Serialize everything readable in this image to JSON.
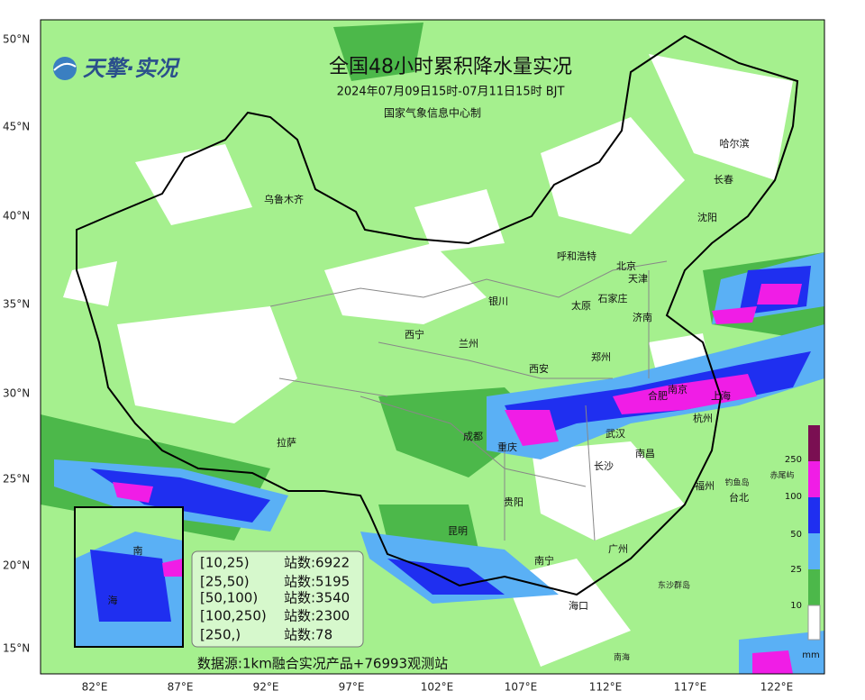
{
  "header": {
    "logo": "天擎·实况",
    "title": "全国48小时累积降水量实况",
    "subtitle": "2024年07月09日15时-07月11日15时 BJT",
    "agency": "国家气象信息中心制"
  },
  "axes": {
    "lat_labels": [
      "50°N",
      "45°N",
      "40°N",
      "35°N",
      "30°N",
      "25°N",
      "20°N",
      "15°N"
    ],
    "lon_labels": [
      "82°E",
      "87°E",
      "92°E",
      "97°E",
      "102°E",
      "107°E",
      "112°E",
      "117°E",
      "122°E"
    ]
  },
  "cities": [
    "乌鲁木齐",
    "哈尔滨",
    "长春",
    "沈阳",
    "呼和浩特",
    "北京",
    "天津",
    "石家庄",
    "银川",
    "太原",
    "济南",
    "西宁",
    "兰州",
    "郑州",
    "西安",
    "南京",
    "合肥",
    "上海",
    "杭州",
    "成都",
    "重庆",
    "武汉",
    "拉萨",
    "南昌",
    "长沙",
    "福州",
    "台北",
    "贵阳",
    "昆明",
    "南宁",
    "广州",
    "海口"
  ],
  "small_labels": [
    "钓鱼岛",
    "赤尾屿",
    "东沙群岛",
    "南海"
  ],
  "inset": {
    "labels": [
      "南",
      "海"
    ]
  },
  "legend": {
    "rows": [
      {
        "range": "[10,25)",
        "stations": "站数:6922"
      },
      {
        "range": "[25,50)",
        "stations": "站数:5195"
      },
      {
        "range": "[50,100)",
        "stations": "站数:3540"
      },
      {
        "range": "[100,250)",
        "stations": "站数:2300"
      },
      {
        "range": "[250,)",
        "stations": "站数:78"
      }
    ]
  },
  "colorbar": {
    "labels": [
      "250",
      "100",
      "50",
      "25",
      "10"
    ],
    "unit": "mm"
  },
  "source": "数据源:1km融合实况产品+76993观测站"
}
